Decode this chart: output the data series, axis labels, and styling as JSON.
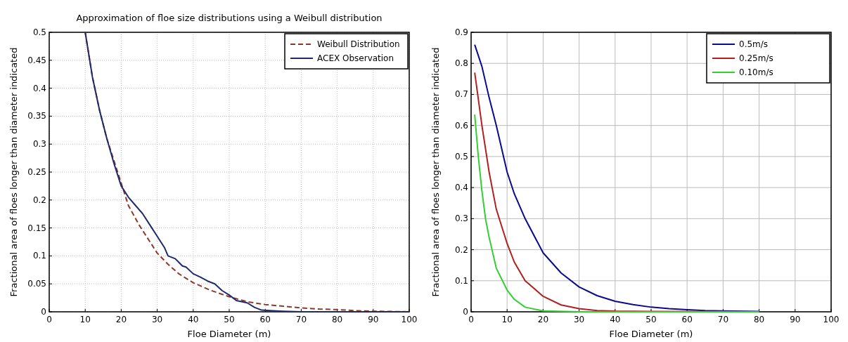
{
  "chart_data": [
    {
      "type": "line",
      "title": "Approximation of floe size distributions using a Weibull distribution",
      "xlabel": "Floe Diameter (m)",
      "ylabel": "Fractional area of floes longer than diameter indicated",
      "xlim": [
        0,
        100
      ],
      "xticks": [
        0,
        10,
        20,
        30,
        40,
        50,
        60,
        70,
        80,
        90,
        100
      ],
      "ylim": [
        0,
        0.5
      ],
      "yticks": [
        0,
        0.05,
        0.1,
        0.15,
        0.2,
        0.25,
        0.3,
        0.35,
        0.4,
        0.45,
        0.5
      ],
      "grid": true,
      "legend": "top right",
      "series": [
        {
          "name": "Weibull Distribution",
          "color": "#8b3a2a",
          "line_style": "dashed",
          "x": [
            10,
            12,
            14,
            16,
            18,
            20,
            22,
            25,
            28,
            30,
            33,
            36,
            40,
            45,
            50,
            55,
            60,
            65,
            70,
            75,
            80,
            85,
            90,
            100
          ],
          "values": [
            0.5,
            0.42,
            0.36,
            0.31,
            0.27,
            0.23,
            0.19,
            0.155,
            0.125,
            0.105,
            0.085,
            0.068,
            0.052,
            0.038,
            0.027,
            0.018,
            0.013,
            0.01,
            0.007,
            0.005,
            0.004,
            0.002,
            0.001,
            0
          ]
        },
        {
          "name": "ACEX Observation",
          "color": "#1f2a6b",
          "line_style": "solid",
          "x": [
            10,
            12,
            14,
            16,
            18,
            20,
            22,
            24,
            26,
            28,
            30,
            32,
            33,
            35,
            37,
            38,
            40,
            42,
            44,
            46,
            48,
            50,
            52,
            55,
            57,
            59,
            62,
            65,
            70,
            100
          ],
          "values": [
            0.5,
            0.42,
            0.36,
            0.31,
            0.265,
            0.225,
            0.205,
            0.19,
            0.175,
            0.155,
            0.135,
            0.115,
            0.1,
            0.095,
            0.082,
            0.08,
            0.068,
            0.062,
            0.055,
            0.05,
            0.038,
            0.03,
            0.02,
            0.016,
            0.008,
            0.003,
            0.002,
            0.001,
            0,
            0
          ]
        }
      ]
    },
    {
      "type": "line",
      "xlabel": "Floe Diameter (m)",
      "ylabel": "Fractional area of floes longer than diameter indicated",
      "xlim": [
        0,
        100
      ],
      "xticks": [
        0,
        10,
        20,
        30,
        40,
        50,
        60,
        70,
        80,
        90,
        100
      ],
      "ylim": [
        0,
        0.9
      ],
      "yticks": [
        0,
        0.1,
        0.2,
        0.3,
        0.4,
        0.5,
        0.6,
        0.7,
        0.8,
        0.9
      ],
      "grid": true,
      "legend": "top right",
      "series": [
        {
          "name": "0.5m/s",
          "color": "#0a0a8c",
          "x": [
            1,
            3,
            5,
            7,
            10,
            12,
            15,
            20,
            25,
            30,
            35,
            40,
            45,
            50,
            55,
            60,
            65,
            70,
            80
          ],
          "values": [
            0.86,
            0.79,
            0.69,
            0.6,
            0.45,
            0.38,
            0.3,
            0.19,
            0.125,
            0.08,
            0.052,
            0.034,
            0.023,
            0.015,
            0.01,
            0.007,
            0.004,
            0.003,
            0.001
          ]
        },
        {
          "name": "0.25m/s",
          "color": "#b02020",
          "x": [
            1,
            3,
            5,
            7,
            10,
            12,
            15,
            20,
            25,
            30,
            35,
            40,
            50,
            80
          ],
          "values": [
            0.77,
            0.6,
            0.45,
            0.33,
            0.22,
            0.16,
            0.1,
            0.05,
            0.022,
            0.01,
            0.004,
            0.002,
            0.001,
            0
          ]
        },
        {
          "name": "0.10m/s",
          "color": "#30d030",
          "x": [
            1,
            2,
            3,
            4,
            5,
            7,
            10,
            12,
            15,
            20,
            30,
            80
          ],
          "values": [
            0.635,
            0.5,
            0.39,
            0.3,
            0.24,
            0.14,
            0.07,
            0.04,
            0.015,
            0.003,
            0,
            0
          ]
        }
      ]
    }
  ]
}
